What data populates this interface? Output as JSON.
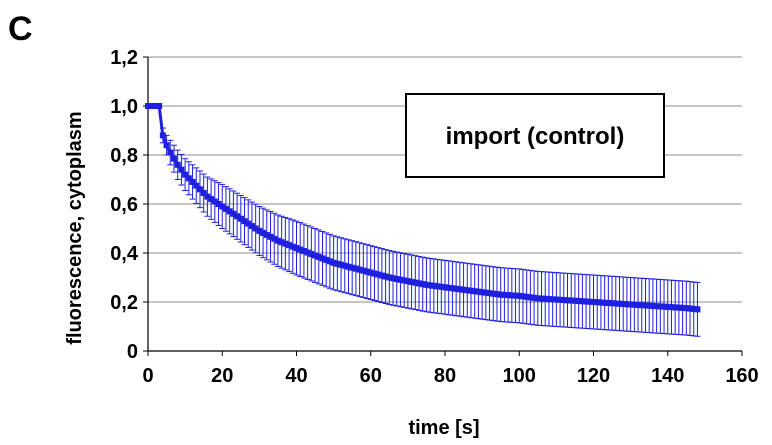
{
  "panel_label": "C",
  "chart_data": {
    "type": "line",
    "title": "",
    "annotation": "import (control)",
    "xlabel": "time [s]",
    "ylabel": "fluorescence, cytoplasm",
    "xlim": [
      0,
      160
    ],
    "ylim": [
      0,
      1.2
    ],
    "x_ticks": [
      "0",
      "20",
      "40",
      "60",
      "80",
      "100",
      "120",
      "140",
      "160"
    ],
    "y_ticks": [
      "0",
      "0,2",
      "0,4",
      "0,6",
      "0,8",
      "1,0",
      "1,2"
    ],
    "grid": "horizontal",
    "series_color": "#1f1fe0",
    "series": [
      {
        "x": [
          0,
          1,
          2,
          3,
          4,
          5,
          6,
          8,
          10,
          12,
          14,
          16,
          18,
          20,
          25,
          30,
          35,
          40,
          45,
          50,
          55,
          60,
          65,
          70,
          75,
          80,
          85,
          90,
          95,
          100,
          105,
          110,
          115,
          120,
          125,
          130,
          135,
          140,
          145,
          148
        ],
        "y": [
          1.0,
          1.0,
          1.0,
          1.0,
          0.88,
          0.84,
          0.81,
          0.76,
          0.72,
          0.69,
          0.66,
          0.63,
          0.61,
          0.59,
          0.54,
          0.49,
          0.45,
          0.42,
          0.39,
          0.36,
          0.34,
          0.32,
          0.3,
          0.285,
          0.27,
          0.26,
          0.25,
          0.24,
          0.23,
          0.225,
          0.215,
          0.21,
          0.205,
          0.2,
          0.195,
          0.19,
          0.185,
          0.18,
          0.175,
          0.17
        ],
        "err": [
          0,
          0,
          0,
          0,
          0.03,
          0.04,
          0.05,
          0.06,
          0.065,
          0.07,
          0.075,
          0.08,
          0.085,
          0.09,
          0.095,
          0.1,
          0.105,
          0.11,
          0.11,
          0.11,
          0.11,
          0.11,
          0.11,
          0.11,
          0.11,
          0.11,
          0.11,
          0.11,
          0.11,
          0.11,
          0.11,
          0.11,
          0.11,
          0.11,
          0.11,
          0.11,
          0.11,
          0.11,
          0.11,
          0.11
        ]
      }
    ]
  }
}
